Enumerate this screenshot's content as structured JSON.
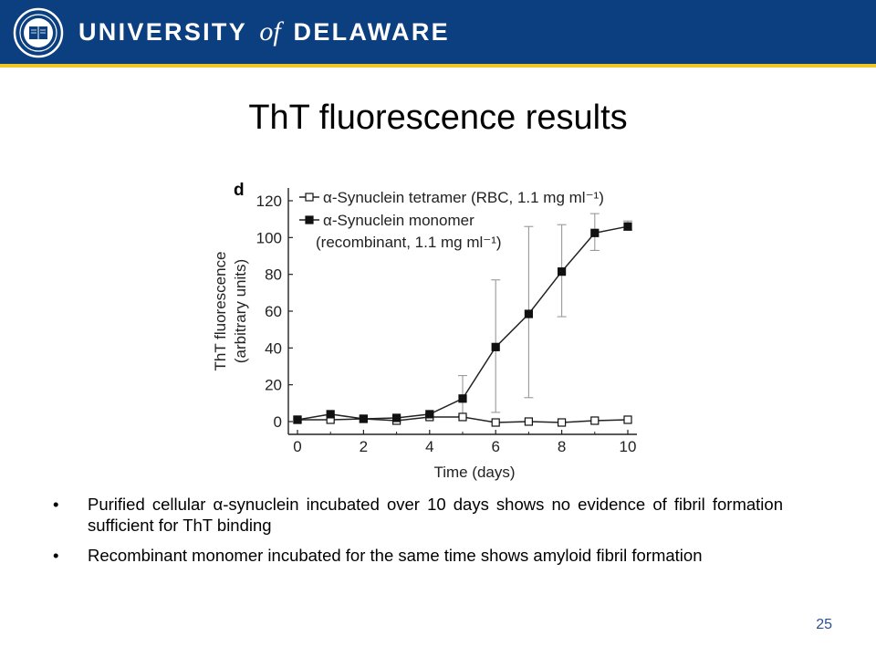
{
  "header": {
    "name_before": "UNIVERSITY",
    "name_of": "of",
    "name_after": "DELAWARE",
    "seal_icon": "university-seal-icon",
    "bar_color": "#0b3f7f",
    "accent_color": "#f3c623"
  },
  "slide": {
    "title": "ThT fluorescence results",
    "page_number": "25"
  },
  "chart_data": {
    "type": "line",
    "panel_label": "d",
    "xlabel": "Time (days)",
    "ylabel_line1": "ThT fluorescence",
    "ylabel_line2": "(arbitrary units)",
    "xlim": [
      0,
      10
    ],
    "ylim": [
      0,
      120
    ],
    "x_ticks": [
      0,
      2,
      4,
      6,
      8,
      10
    ],
    "y_ticks": [
      0,
      20,
      40,
      60,
      80,
      100,
      120
    ],
    "grid": false,
    "legend_placement": "top-left",
    "series": [
      {
        "name": "α-Synuclein tetramer (RBC, 1.1 mg ml⁻¹)",
        "marker": "open-square",
        "x": [
          0,
          1,
          2,
          3,
          4,
          5,
          6,
          7,
          8,
          9,
          10
        ],
        "y": [
          1,
          1,
          1.5,
          0.5,
          2.5,
          2.5,
          -0.5,
          0,
          -0.5,
          0.5,
          1
        ]
      },
      {
        "name_line1": "α-Synuclein monomer",
        "name_line2": "(recombinant, 1.1 mg ml⁻¹)",
        "marker": "filled-square",
        "x": [
          0,
          1,
          2,
          3,
          4,
          5,
          6,
          7,
          8,
          9,
          10
        ],
        "y": [
          1,
          4,
          1.5,
          2,
          4,
          12.5,
          40.5,
          58.5,
          81.5,
          102.5,
          106
        ],
        "err_low": [
          null,
          null,
          null,
          null,
          null,
          3,
          5,
          13,
          57,
          93,
          104
        ],
        "err_high": [
          null,
          null,
          null,
          null,
          null,
          25,
          77,
          106,
          107,
          113,
          109
        ]
      }
    ]
  },
  "bullets": [
    "Purified cellular α-synuclein incubated over 10 days shows no evidence of fibril formation sufficient for ThT binding",
    "Recombinant monomer incubated for the same time shows amyloid fibril formation"
  ]
}
